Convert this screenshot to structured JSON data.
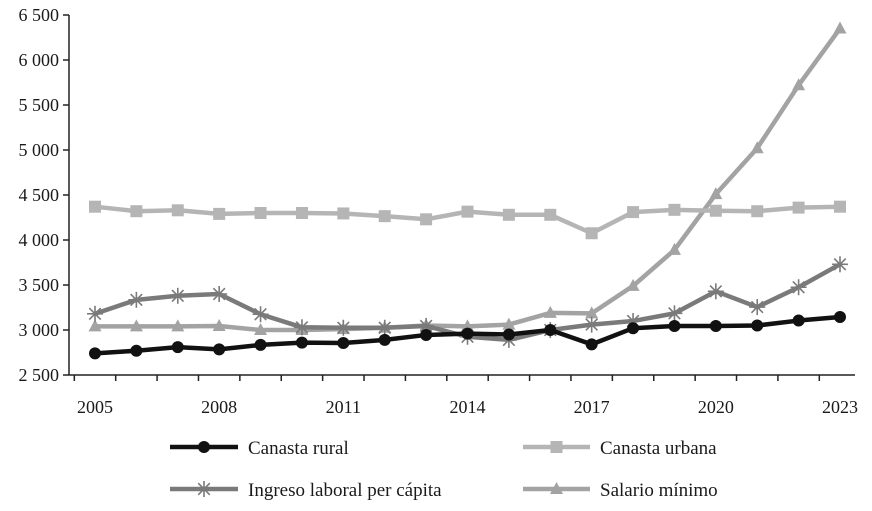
{
  "chart_data": {
    "type": "line",
    "title": "",
    "xlabel": "",
    "ylabel": "",
    "x": [
      2005,
      2006,
      2007,
      2008,
      2009,
      2010,
      2011,
      2012,
      2013,
      2014,
      2015,
      2016,
      2017,
      2018,
      2019,
      2020,
      2021,
      2022,
      2023
    ],
    "xticks": [
      "2005",
      "2008",
      "2011",
      "2014",
      "2017",
      "2020",
      "2023"
    ],
    "xtick_values": [
      2005,
      2008,
      2011,
      2014,
      2017,
      2020,
      2023
    ],
    "ylim": [
      2500,
      6500
    ],
    "yticks": [
      "2 500",
      "3 000",
      "3 500",
      "4 000",
      "4 500",
      "5 000",
      "5 500",
      "6 000",
      "6 500"
    ],
    "ytick_values": [
      2500,
      3000,
      3500,
      4000,
      4500,
      5000,
      5500,
      6000,
      6500
    ],
    "grid": false,
    "legend_placement": "bottom",
    "series": [
      {
        "name": "Canasta rural",
        "marker": "circle",
        "color": "#111111",
        "values": [
          2740,
          2770,
          2810,
          2785,
          2835,
          2860,
          2855,
          2890,
          2945,
          2960,
          2950,
          3000,
          2840,
          3020,
          3045,
          3045,
          3050,
          3105,
          3145
        ]
      },
      {
        "name": "Canasta urbana",
        "marker": "square",
        "color": "#b5b5b5",
        "values": [
          4370,
          4320,
          4330,
          4290,
          4300,
          4300,
          4295,
          4265,
          4230,
          4315,
          4280,
          4280,
          4075,
          4310,
          4335,
          4325,
          4320,
          4360,
          4370
        ]
      },
      {
        "name": "Ingreso laboral per cápita",
        "marker": "asterisk",
        "color": "#7a7a7a",
        "values": [
          3180,
          3335,
          3380,
          3400,
          3175,
          3030,
          3025,
          3025,
          3045,
          2925,
          2890,
          3000,
          3060,
          3100,
          3185,
          3430,
          3255,
          3475,
          3730
        ]
      },
      {
        "name": "Salario mínimo",
        "marker": "triangle",
        "color": "#a3a3a3",
        "values": [
          3040,
          3040,
          3040,
          3045,
          3000,
          3000,
          3010,
          3025,
          3050,
          3040,
          3060,
          3190,
          3185,
          3490,
          3890,
          4510,
          5020,
          5720,
          6350
        ]
      }
    ]
  }
}
